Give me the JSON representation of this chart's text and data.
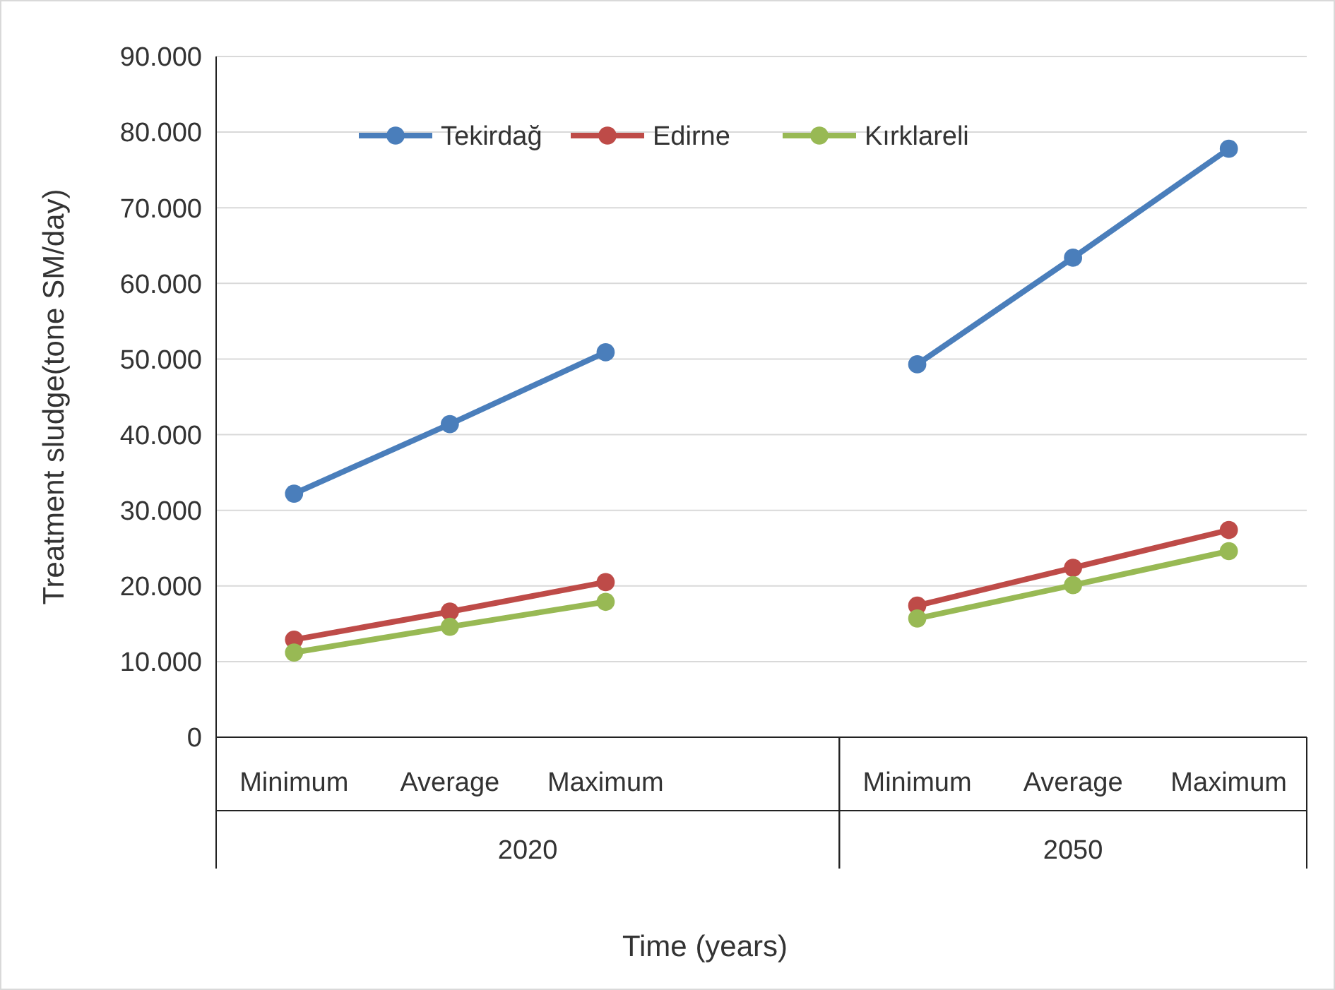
{
  "chart_data": {
    "type": "line",
    "xlabel": "Time (years)",
    "ylabel": "Treatment  sludge(tone SM/day)",
    "categories": [
      "Minimum",
      "Average",
      "Maximum",
      null,
      "Minimum",
      "Average",
      "Maximum"
    ],
    "series": [
      {
        "name": "Tekirdağ",
        "color": "#4a7ebb",
        "values": [
          32200,
          41400,
          50900,
          null,
          49300,
          63400,
          77800
        ]
      },
      {
        "name": "Edirne",
        "color": "#be4b48",
        "values": [
          12900,
          16600,
          20500,
          null,
          17400,
          22400,
          27400
        ]
      },
      {
        "name": "Kırklareli",
        "color": "#98b954",
        "values": [
          11200,
          14600,
          17900,
          null,
          15700,
          20100,
          24600
        ]
      }
    ],
    "annotations": [
      "2020",
      "2050"
    ],
    "ylim": [
      0,
      90000
    ],
    "yticks": [
      0,
      {
        "value": 10000,
        "label": "10.000"
      },
      {
        "value": 20000,
        "label": "20.000"
      },
      {
        "value": 30000,
        "label": "30.000"
      },
      {
        "value": 40000,
        "label": "40.000"
      },
      {
        "value": 50000,
        "label": "50.000"
      },
      {
        "value": 60000,
        "label": "60.000"
      },
      {
        "value": 70000,
        "label": "70.000"
      },
      {
        "value": 80000,
        "label": "80.000"
      },
      {
        "value": 90000,
        "label": "90.000"
      }
    ],
    "grid": "y",
    "legend": "top",
    "marker": "circle",
    "line_style": "solid"
  }
}
